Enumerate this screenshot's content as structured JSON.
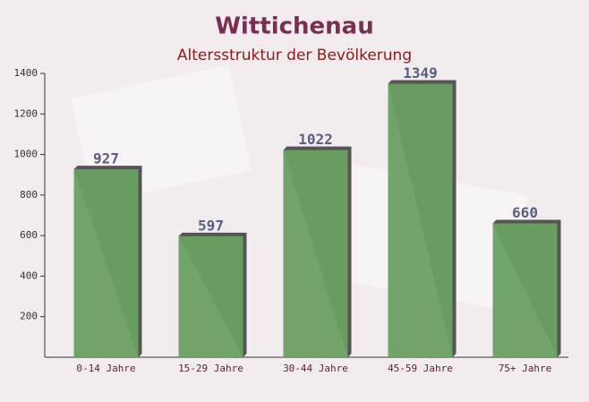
{
  "chart_data": {
    "type": "bar",
    "title": "Wittichenau",
    "subtitle": "Altersstruktur der Bevölkerung",
    "categories": [
      "0-14 Jahre",
      "15-29 Jahre",
      "30-44 Jahre",
      "45-59 Jahre",
      "75+ Jahre"
    ],
    "values": [
      927,
      597,
      1022,
      1349,
      660
    ],
    "color": "#6aa062",
    "ylim": [
      0,
      1400
    ],
    "yticks": [
      200,
      400,
      600,
      800,
      1000,
      1200,
      1400
    ]
  }
}
